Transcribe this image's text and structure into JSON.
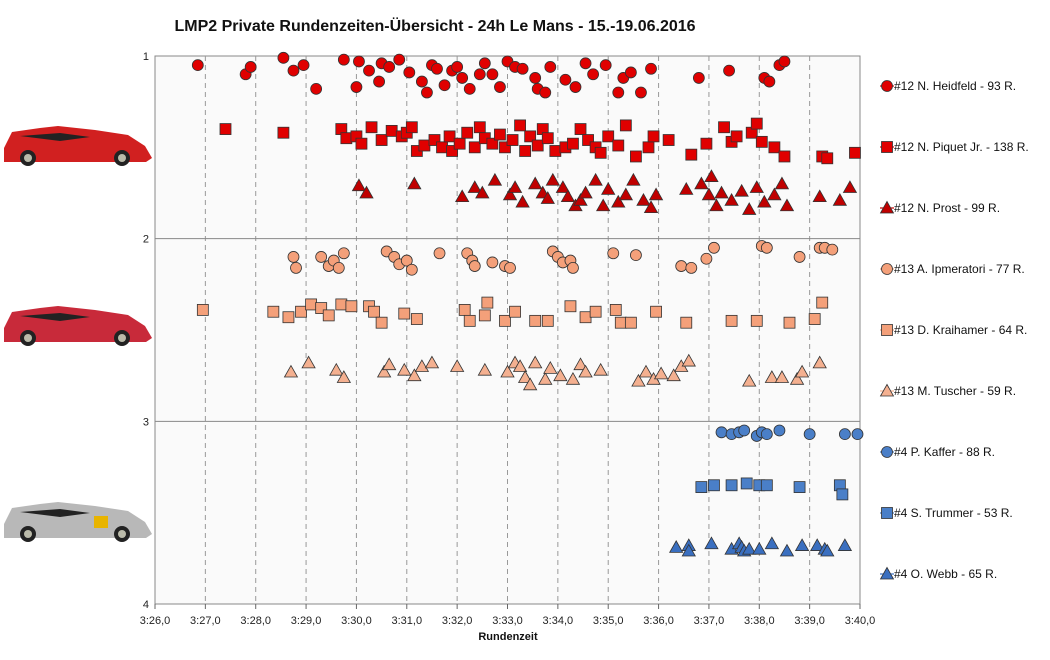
{
  "chart_data": {
    "type": "scatter",
    "title": "LMP2  Private  Rundenzeiten-Übersicht  - 24h  Le Mans  - 15.-19.06.2016",
    "xlabel": "Rundenzeit",
    "ylabel": "",
    "x_tick_labels": [
      "3:26,0",
      "3:27,0",
      "3:28,0",
      "3:29,0",
      "3:30,0",
      "3:31,0",
      "3:32,0",
      "3:33,0",
      "3:34,0",
      "3:35,0",
      "3:36,0",
      "3:37,0",
      "3:38,0",
      "3:39,0",
      "3:40,0"
    ],
    "xlim": [
      206,
      220
    ],
    "y_tick_labels": [
      "1",
      "2",
      "3",
      "4"
    ],
    "ylim": [
      1,
      4
    ],
    "grid": "vertical dashed, horizontal solid at 2 and 3",
    "legend_position": "right",
    "series": [
      {
        "name": "#12 N. Heidfeld - 93 R.",
        "marker": "circle",
        "color": "#e00000",
        "x": [
          206.85,
          207.8,
          207.9,
          208.55,
          208.75,
          208.95,
          209.2,
          209.75,
          210.0,
          210.05,
          210.25,
          210.45,
          210.5,
          210.65,
          210.85,
          211.05,
          211.3,
          211.4,
          211.5,
          211.6,
          211.75,
          211.9,
          212.0,
          212.1,
          212.25,
          212.45,
          212.55,
          212.7,
          212.85,
          213.0,
          213.15,
          213.3,
          213.55,
          213.6,
          213.75,
          213.85,
          214.15,
          214.35,
          214.55,
          214.7,
          214.95,
          215.2,
          215.3,
          215.45,
          215.65,
          215.85,
          216.8,
          217.4,
          218.1,
          218.2,
          218.4,
          218.5
        ],
        "y": [
          1.05,
          1.1,
          1.06,
          1.01,
          1.08,
          1.05,
          1.18,
          1.02,
          1.17,
          1.03,
          1.08,
          1.14,
          1.04,
          1.06,
          1.02,
          1.09,
          1.14,
          1.2,
          1.05,
          1.07,
          1.16,
          1.08,
          1.06,
          1.12,
          1.18,
          1.1,
          1.04,
          1.1,
          1.17,
          1.03,
          1.06,
          1.07,
          1.12,
          1.18,
          1.2,
          1.06,
          1.13,
          1.17,
          1.04,
          1.1,
          1.05,
          1.2,
          1.12,
          1.09,
          1.2,
          1.07,
          1.12,
          1.08,
          1.12,
          1.14,
          1.05,
          1.03
        ]
      },
      {
        "name": "#12 N. Piquet Jr. - 138 R.",
        "marker": "square",
        "color": "#e00000",
        "x": [
          207.4,
          208.55,
          209.7,
          209.8,
          210.0,
          210.1,
          210.3,
          210.5,
          210.7,
          210.9,
          211.0,
          211.1,
          211.2,
          211.35,
          211.55,
          211.7,
          211.85,
          211.9,
          212.05,
          212.2,
          212.35,
          212.45,
          212.55,
          212.7,
          212.85,
          212.95,
          213.1,
          213.25,
          213.35,
          213.45,
          213.6,
          213.7,
          213.8,
          213.95,
          214.15,
          214.3,
          214.45,
          214.6,
          214.75,
          214.85,
          215.0,
          215.2,
          215.35,
          215.55,
          215.8,
          215.9,
          216.2,
          216.65,
          216.95,
          217.3,
          217.45,
          217.55,
          217.85,
          217.95,
          218.05,
          218.3,
          218.5,
          219.25,
          219.35,
          219.9
        ],
        "y": [
          1.4,
          1.42,
          1.4,
          1.45,
          1.44,
          1.48,
          1.39,
          1.46,
          1.41,
          1.44,
          1.42,
          1.39,
          1.52,
          1.49,
          1.46,
          1.5,
          1.44,
          1.52,
          1.48,
          1.42,
          1.5,
          1.39,
          1.45,
          1.48,
          1.43,
          1.5,
          1.46,
          1.38,
          1.52,
          1.44,
          1.49,
          1.4,
          1.45,
          1.52,
          1.5,
          1.48,
          1.4,
          1.46,
          1.5,
          1.53,
          1.44,
          1.49,
          1.38,
          1.55,
          1.5,
          1.44,
          1.46,
          1.54,
          1.48,
          1.39,
          1.47,
          1.44,
          1.42,
          1.37,
          1.47,
          1.5,
          1.55,
          1.55,
          1.56,
          1.53
        ]
      },
      {
        "name": "#12 N. Prost - 99 R.",
        "marker": "triangle",
        "color": "#c00000",
        "x": [
          210.05,
          210.2,
          211.15,
          212.1,
          212.35,
          212.5,
          212.75,
          213.05,
          213.15,
          213.3,
          213.55,
          213.7,
          213.8,
          213.9,
          214.1,
          214.2,
          214.35,
          214.45,
          214.55,
          214.75,
          214.9,
          215.0,
          215.2,
          215.35,
          215.5,
          215.7,
          215.85,
          215.95,
          216.55,
          216.85,
          217.0,
          217.05,
          217.15,
          217.25,
          217.45,
          217.65,
          217.8,
          217.95,
          218.1,
          218.3,
          218.45,
          218.55,
          219.2,
          219.6,
          219.8
        ],
        "y": [
          1.71,
          1.75,
          1.7,
          1.77,
          1.72,
          1.75,
          1.68,
          1.76,
          1.72,
          1.8,
          1.7,
          1.75,
          1.78,
          1.68,
          1.72,
          1.77,
          1.82,
          1.79,
          1.75,
          1.68,
          1.82,
          1.73,
          1.8,
          1.76,
          1.68,
          1.79,
          1.83,
          1.76,
          1.73,
          1.7,
          1.76,
          1.66,
          1.82,
          1.75,
          1.79,
          1.74,
          1.84,
          1.72,
          1.8,
          1.76,
          1.7,
          1.82,
          1.77,
          1.79,
          1.72
        ]
      },
      {
        "name": "#13 A. Ipmeratori - 77 R.",
        "marker": "circle",
        "color": "#f4a07a",
        "x": [
          208.75,
          208.8,
          209.3,
          209.45,
          209.55,
          209.65,
          209.75,
          210.6,
          210.75,
          210.85,
          211.0,
          211.1,
          211.65,
          212.2,
          212.3,
          212.35,
          212.7,
          212.95,
          213.05,
          213.9,
          214.0,
          214.1,
          214.25,
          214.3,
          215.1,
          215.55,
          216.45,
          216.65,
          216.95,
          217.1,
          218.05,
          218.15,
          218.8,
          219.2,
          219.3,
          219.45
        ],
        "y": [
          2.1,
          2.16,
          2.1,
          2.15,
          2.12,
          2.16,
          2.08,
          2.07,
          2.1,
          2.14,
          2.12,
          2.17,
          2.08,
          2.08,
          2.12,
          2.15,
          2.13,
          2.15,
          2.16,
          2.07,
          2.1,
          2.13,
          2.12,
          2.16,
          2.08,
          2.09,
          2.15,
          2.16,
          2.11,
          2.05,
          2.04,
          2.05,
          2.1,
          2.05,
          2.05,
          2.06
        ]
      },
      {
        "name": "#13 D. Kraihamer - 64 R.",
        "marker": "square",
        "color": "#f4a07a",
        "x": [
          206.95,
          208.35,
          208.65,
          208.9,
          209.1,
          209.3,
          209.45,
          209.7,
          209.9,
          210.25,
          210.35,
          210.5,
          210.95,
          211.2,
          212.15,
          212.25,
          212.55,
          212.6,
          212.95,
          213.15,
          213.55,
          213.8,
          214.25,
          214.55,
          214.75,
          215.15,
          215.25,
          215.45,
          215.95,
          216.55,
          217.45,
          217.95,
          218.6,
          219.1,
          219.25
        ],
        "y": [
          2.39,
          2.4,
          2.43,
          2.4,
          2.36,
          2.38,
          2.42,
          2.36,
          2.37,
          2.37,
          2.4,
          2.46,
          2.41,
          2.44,
          2.39,
          2.45,
          2.42,
          2.35,
          2.45,
          2.4,
          2.45,
          2.45,
          2.37,
          2.43,
          2.4,
          2.39,
          2.46,
          2.46,
          2.4,
          2.46,
          2.45,
          2.45,
          2.46,
          2.44,
          2.35
        ]
      },
      {
        "name": "#13 M. Tuscher - 59 R.",
        "marker": "triangle",
        "color": "#f4b090",
        "x": [
          208.7,
          209.05,
          209.6,
          209.75,
          210.55,
          210.65,
          210.95,
          211.15,
          211.3,
          211.5,
          212.0,
          212.55,
          213.0,
          213.15,
          213.25,
          213.35,
          213.45,
          213.55,
          213.75,
          213.85,
          214.05,
          214.3,
          214.45,
          214.55,
          214.85,
          215.6,
          215.75,
          215.9,
          216.05,
          216.3,
          216.45,
          216.6,
          217.8,
          218.25,
          218.45,
          218.75,
          218.85,
          219.2
        ],
        "y": [
          2.73,
          2.68,
          2.72,
          2.76,
          2.73,
          2.69,
          2.72,
          2.75,
          2.7,
          2.68,
          2.7,
          2.72,
          2.73,
          2.68,
          2.7,
          2.76,
          2.8,
          2.68,
          2.77,
          2.71,
          2.75,
          2.77,
          2.69,
          2.73,
          2.72,
          2.78,
          2.73,
          2.77,
          2.74,
          2.75,
          2.7,
          2.67,
          2.78,
          2.76,
          2.76,
          2.77,
          2.73,
          2.68
        ]
      },
      {
        "name": "#4 P. Kaffer - 88 R.",
        "marker": "circle",
        "color": "#4a7fc8",
        "x": [
          217.25,
          217.45,
          217.6,
          217.7,
          217.95,
          218.05,
          218.15,
          218.4,
          219.0,
          219.7,
          219.95
        ],
        "y": [
          3.06,
          3.07,
          3.06,
          3.05,
          3.08,
          3.06,
          3.07,
          3.05,
          3.07,
          3.07,
          3.07
        ]
      },
      {
        "name": "#4 S. Trummer - 53 R.",
        "marker": "square",
        "color": "#4a7fc8",
        "x": [
          216.85,
          217.1,
          217.45,
          217.75,
          218.0,
          218.15,
          218.8,
          219.6,
          219.65
        ],
        "y": [
          3.36,
          3.35,
          3.35,
          3.34,
          3.35,
          3.35,
          3.36,
          3.35,
          3.4
        ]
      },
      {
        "name": "#4 O. Webb - 65 R.",
        "marker": "triangle",
        "color": "#3a6fc0",
        "x": [
          216.35,
          216.6,
          216.6,
          217.05,
          217.45,
          217.6,
          217.65,
          217.7,
          217.8,
          218.0,
          218.25,
          218.55,
          218.85,
          219.15,
          219.3,
          219.35,
          219.7
        ],
        "y": [
          3.69,
          3.68,
          3.71,
          3.67,
          3.7,
          3.67,
          3.69,
          3.71,
          3.7,
          3.7,
          3.67,
          3.71,
          3.68,
          3.68,
          3.7,
          3.71,
          3.68
        ]
      }
    ]
  }
}
